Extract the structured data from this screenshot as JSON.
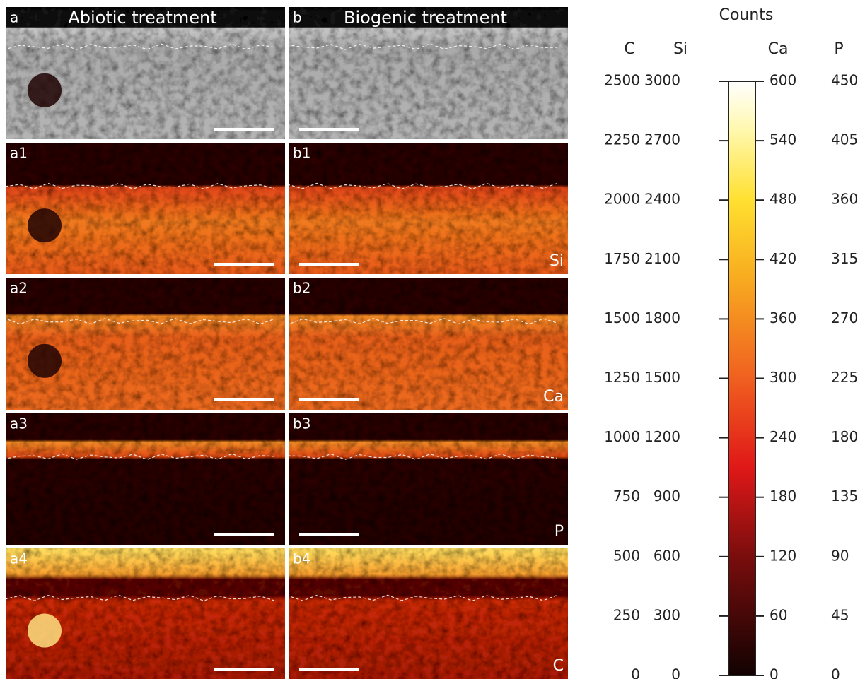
{
  "panels": [
    {
      "label": "a",
      "title": "Abiotic treatment"
    },
    {
      "label": "b",
      "title": "Biogenic treatment"
    },
    {
      "label": "a1"
    },
    {
      "label": "b1",
      "element": "Si"
    },
    {
      "label": "a2"
    },
    {
      "label": "b2",
      "element": "Ca"
    },
    {
      "label": "a3"
    },
    {
      "label": "b3",
      "element": "P"
    },
    {
      "label": "a4"
    },
    {
      "label": "b4",
      "element": "C"
    }
  ],
  "colorbar": {
    "title": "Counts",
    "scales": [
      {
        "name": "C",
        "ticks": [
          0,
          250,
          500,
          750,
          1000,
          1250,
          1500,
          1750,
          2000,
          2250,
          2500
        ]
      },
      {
        "name": "Si",
        "ticks": [
          0,
          300,
          600,
          900,
          1200,
          1500,
          1800,
          2100,
          2400,
          2700,
          3000
        ]
      },
      {
        "name": "Ca",
        "ticks": [
          0,
          60,
          120,
          180,
          240,
          300,
          360,
          420,
          480,
          540,
          600
        ]
      },
      {
        "name": "P",
        "ticks": [
          0,
          45,
          90,
          135,
          180,
          225,
          270,
          315,
          360,
          405,
          450
        ]
      }
    ]
  }
}
